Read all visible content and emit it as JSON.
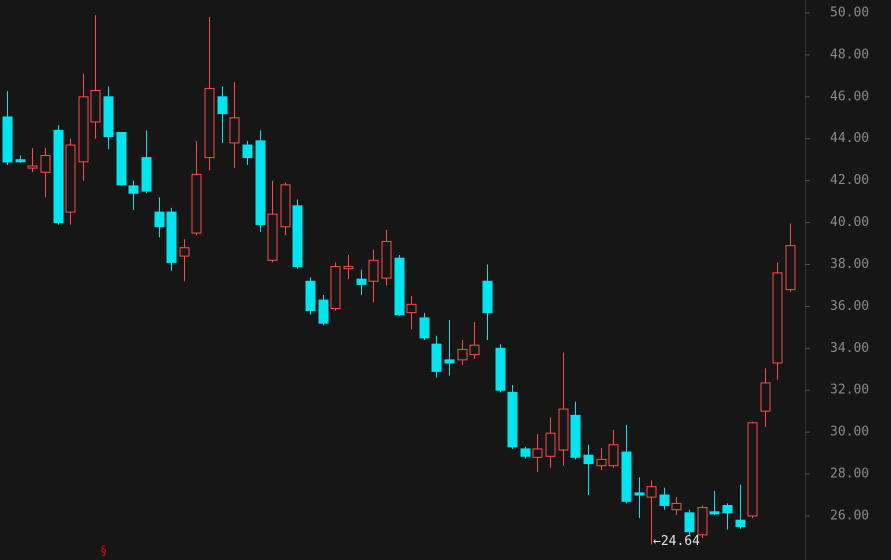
{
  "chart_data": {
    "type": "candlestick",
    "up_color": "#ff4a4a",
    "down_color": "#00e5f0",
    "ylim": [
      23.9,
      50.62
    ],
    "yticks": [
      {
        "value": 26,
        "label": "26.00"
      },
      {
        "value": 28,
        "label": "28.00"
      },
      {
        "value": 30,
        "label": "30.00"
      },
      {
        "value": 32,
        "label": "32.00"
      },
      {
        "value": 34,
        "label": "34.00"
      },
      {
        "value": 36,
        "label": "36.00"
      },
      {
        "value": 38,
        "label": "38.00"
      },
      {
        "value": 40,
        "label": "40.00"
      },
      {
        "value": 42,
        "label": "42.00"
      },
      {
        "value": 44,
        "label": "44.00"
      },
      {
        "value": 46,
        "label": "46.00"
      },
      {
        "value": 48,
        "label": "48.00"
      },
      {
        "value": 50,
        "label": "50.00"
      }
    ],
    "open": [
      45.04,
      43.0,
      42.6,
      42.4,
      44.4,
      40.5,
      42.9,
      44.8,
      46.0,
      44.3,
      41.75,
      43.1,
      40.5,
      40.5,
      38.4,
      39.5,
      43.1,
      46.0,
      43.8,
      43.7,
      43.9,
      38.2,
      39.8,
      40.8,
      37.2,
      36.3,
      35.9,
      37.8,
      37.3,
      37.2,
      37.35,
      38.3,
      35.7,
      35.45,
      34.2,
      33.45,
      33.45,
      33.7,
      37.2,
      34.0,
      31.9,
      29.2,
      28.8,
      28.85,
      29.15,
      30.8,
      28.9,
      28.4,
      28.4,
      29.05,
      27.1,
      26.9,
      27.0,
      26.3,
      26.15,
      25.1,
      26.2,
      26.5,
      25.8,
      26.0,
      31.0,
      33.3,
      36.8
    ],
    "high": [
      46.28,
      43.2,
      43.55,
      43.55,
      44.65,
      44.0,
      47.1,
      49.9,
      46.5,
      44.3,
      42.0,
      44.4,
      41.2,
      40.7,
      39.2,
      43.9,
      49.8,
      46.5,
      46.7,
      43.9,
      44.4,
      42.0,
      41.9,
      41.1,
      37.4,
      36.55,
      38.1,
      38.45,
      37.75,
      38.7,
      39.65,
      38.45,
      36.5,
      35.7,
      34.6,
      35.35,
      34.4,
      35.25,
      38.0,
      34.2,
      32.25,
      29.3,
      29.9,
      30.7,
      33.8,
      31.45,
      29.4,
      29.25,
      30.1,
      30.35,
      27.85,
      27.7,
      27.35,
      26.9,
      26.3,
      26.5,
      27.2,
      26.6,
      27.5,
      30.5,
      33.05,
      38.1,
      39.95
    ],
    "low": [
      42.75,
      42.85,
      42.4,
      41.2,
      39.9,
      39.9,
      42.0,
      44.0,
      43.5,
      41.75,
      40.6,
      41.4,
      39.3,
      37.7,
      37.2,
      39.4,
      42.5,
      43.8,
      42.6,
      42.75,
      39.55,
      38.1,
      39.4,
      37.8,
      35.6,
      35.1,
      35.8,
      37.3,
      36.55,
      36.2,
      37.0,
      35.55,
      34.9,
      34.4,
      32.6,
      32.7,
      33.2,
      33.5,
      34.4,
      31.9,
      29.2,
      28.75,
      28.1,
      28.3,
      28.4,
      28.7,
      27.0,
      28.2,
      28.3,
      26.6,
      25.9,
      24.64,
      26.3,
      26.05,
      25.1,
      24.95,
      26.05,
      25.35,
      25.4,
      25.9,
      30.25,
      32.5,
      36.7
    ],
    "close": [
      42.89,
      42.9,
      42.7,
      43.2,
      40.0,
      43.7,
      46.0,
      46.3,
      44.1,
      41.8,
      41.4,
      41.5,
      39.8,
      38.1,
      38.8,
      42.3,
      46.4,
      45.2,
      45.0,
      43.1,
      39.9,
      40.4,
      41.8,
      37.9,
      35.8,
      35.2,
      37.9,
      37.9,
      37.05,
      38.2,
      39.1,
      35.6,
      36.1,
      34.5,
      32.9,
      33.3,
      33.95,
      34.15,
      35.7,
      32.0,
      29.3,
      28.85,
      29.2,
      29.95,
      31.1,
      28.8,
      28.5,
      28.7,
      29.4,
      26.7,
      27.0,
      27.4,
      26.5,
      26.6,
      25.25,
      26.4,
      26.1,
      26.15,
      25.5,
      30.45,
      32.35,
      37.6,
      38.9
    ],
    "annotation": {
      "text": "←24.64",
      "index": 51
    }
  }
}
